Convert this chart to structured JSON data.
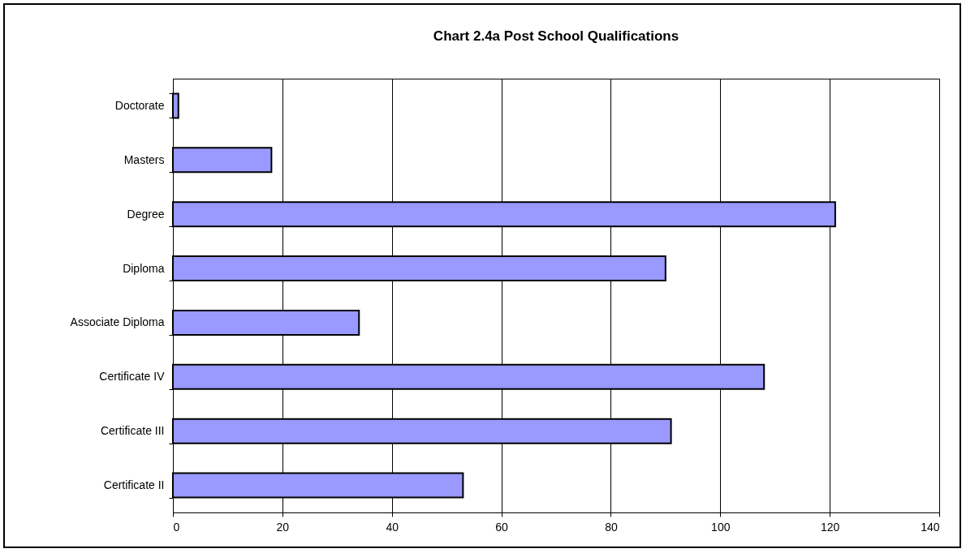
{
  "chart_data": {
    "type": "bar",
    "orientation": "horizontal",
    "title": "Chart 2.4a Post School Qualifications",
    "categories": [
      "Doctorate",
      "Masters",
      "Degree",
      "Diploma",
      "Associate Diploma",
      "Certificate IV",
      "Certificate III",
      "Certificate II"
    ],
    "values": [
      1,
      18,
      121,
      90,
      34,
      108,
      91,
      53
    ],
    "color": "#9999ff",
    "xlim": [
      0,
      140
    ],
    "xticks": [
      0,
      20,
      40,
      60,
      80,
      100,
      120,
      140
    ],
    "grid": "x"
  }
}
